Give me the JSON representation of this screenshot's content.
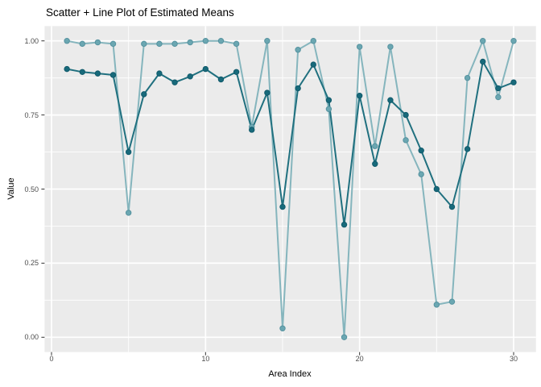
{
  "title": "Scatter + Line Plot of Estimated Means",
  "chart_data": {
    "type": "line",
    "title": "Scatter + Line Plot of Estimated Means",
    "xlabel": "Area Index",
    "ylabel": "Value",
    "x": [
      1,
      2,
      3,
      4,
      5,
      6,
      7,
      8,
      9,
      10,
      11,
      12,
      13,
      14,
      15,
      16,
      17,
      18,
      19,
      20,
      21,
      22,
      23,
      24,
      25,
      26,
      27,
      28,
      29,
      30
    ],
    "series": [
      {
        "name": "estimated-means-light",
        "color": "#85b5bd",
        "point_color": "#6ba7b2",
        "point_stroke": "#55929f",
        "values": [
          1.0,
          0.99,
          0.995,
          0.99,
          0.42,
          0.99,
          0.99,
          0.99,
          0.995,
          1.0,
          1.0,
          0.99,
          0.71,
          1.0,
          0.03,
          0.97,
          1.0,
          0.77,
          0.0,
          0.98,
          0.645,
          0.98,
          0.665,
          0.55,
          0.11,
          0.12,
          0.875,
          1.0,
          0.81,
          1.0
        ]
      },
      {
        "name": "estimated-means-dark",
        "color": "#20707f",
        "point_color": "#186a7b",
        "point_stroke": "#105a6b",
        "values": [
          0.905,
          0.895,
          0.89,
          0.885,
          0.625,
          0.82,
          0.89,
          0.86,
          0.88,
          0.905,
          0.87,
          0.895,
          0.7,
          0.825,
          0.44,
          0.84,
          0.92,
          0.8,
          0.38,
          0.815,
          0.585,
          0.8,
          0.75,
          0.63,
          0.5,
          0.44,
          0.635,
          0.93,
          0.84,
          0.86
        ]
      }
    ],
    "x_ticks": [
      {
        "label": "0",
        "value": 0
      },
      {
        "label": "10",
        "value": 10
      },
      {
        "label": "20",
        "value": 20
      },
      {
        "label": "30",
        "value": 30
      }
    ],
    "y_ticks": [
      {
        "label": "1.00",
        "value": 1.0
      },
      {
        "label": "0.75",
        "value": 0.75
      },
      {
        "label": "0.50",
        "value": 0.5
      },
      {
        "label": "0.25",
        "value": 0.25
      },
      {
        "label": "0.00",
        "value": 0.0
      }
    ],
    "x_minor": [
      5,
      15,
      25
    ],
    "y_minor": [
      0.125,
      0.375,
      0.625,
      0.875
    ],
    "xlim": [
      -0.45,
      31.45
    ],
    "ylim": [
      -0.05,
      1.05
    ],
    "grid": true,
    "legend": "none",
    "panel_bg": "#ebebeb",
    "grid_color": "#ffffff",
    "tick_color": "#333333",
    "tick_label_color": "#4d4d4d"
  }
}
